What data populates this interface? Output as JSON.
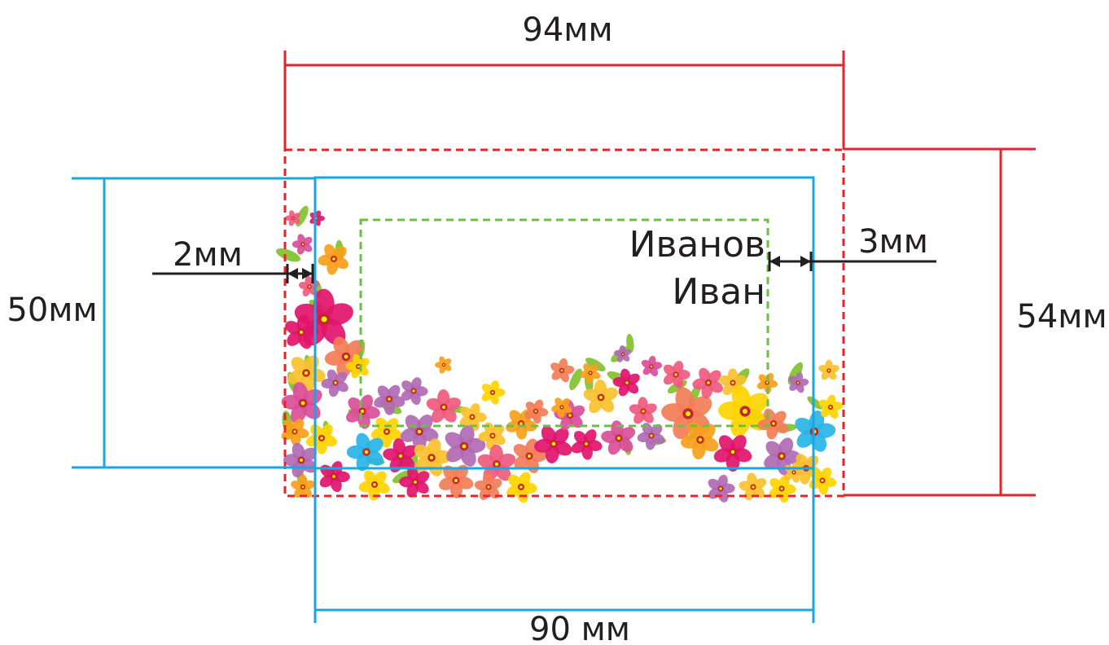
{
  "labels": {
    "bleed_width": "94мм",
    "trim_width": "90 мм",
    "trim_height": "50мм",
    "bleed_height": "54мм",
    "bleed_margin": "2мм",
    "safe_margin": "3мм",
    "name_line1": "Иванов",
    "name_line2": "Иван"
  },
  "colors": {
    "bleed": "#e8232a",
    "trim": "#1aa7e1",
    "safe": "#6cbf45",
    "arrow": "#231f20",
    "flowers": [
      "#f6a01a",
      "#f05a7e",
      "#e2136d",
      "#b06ab3",
      "#ffd400",
      "#f37d56",
      "#29b4e6",
      "#f9c12e",
      "#d94e97"
    ],
    "leaf": "#8cc63f"
  }
}
